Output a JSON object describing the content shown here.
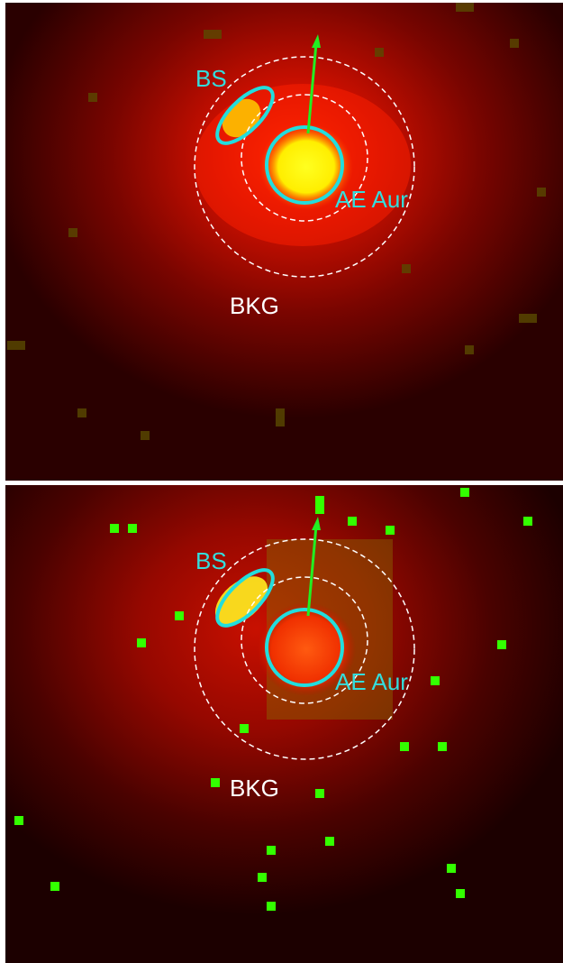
{
  "panels": [
    {
      "labels": {
        "bow_shock": "BS",
        "star": "AE Aur",
        "background": "BKG"
      }
    },
    {
      "labels": {
        "bow_shock": "BS",
        "star": "AE Aur",
        "background": "BKG"
      }
    }
  ]
}
